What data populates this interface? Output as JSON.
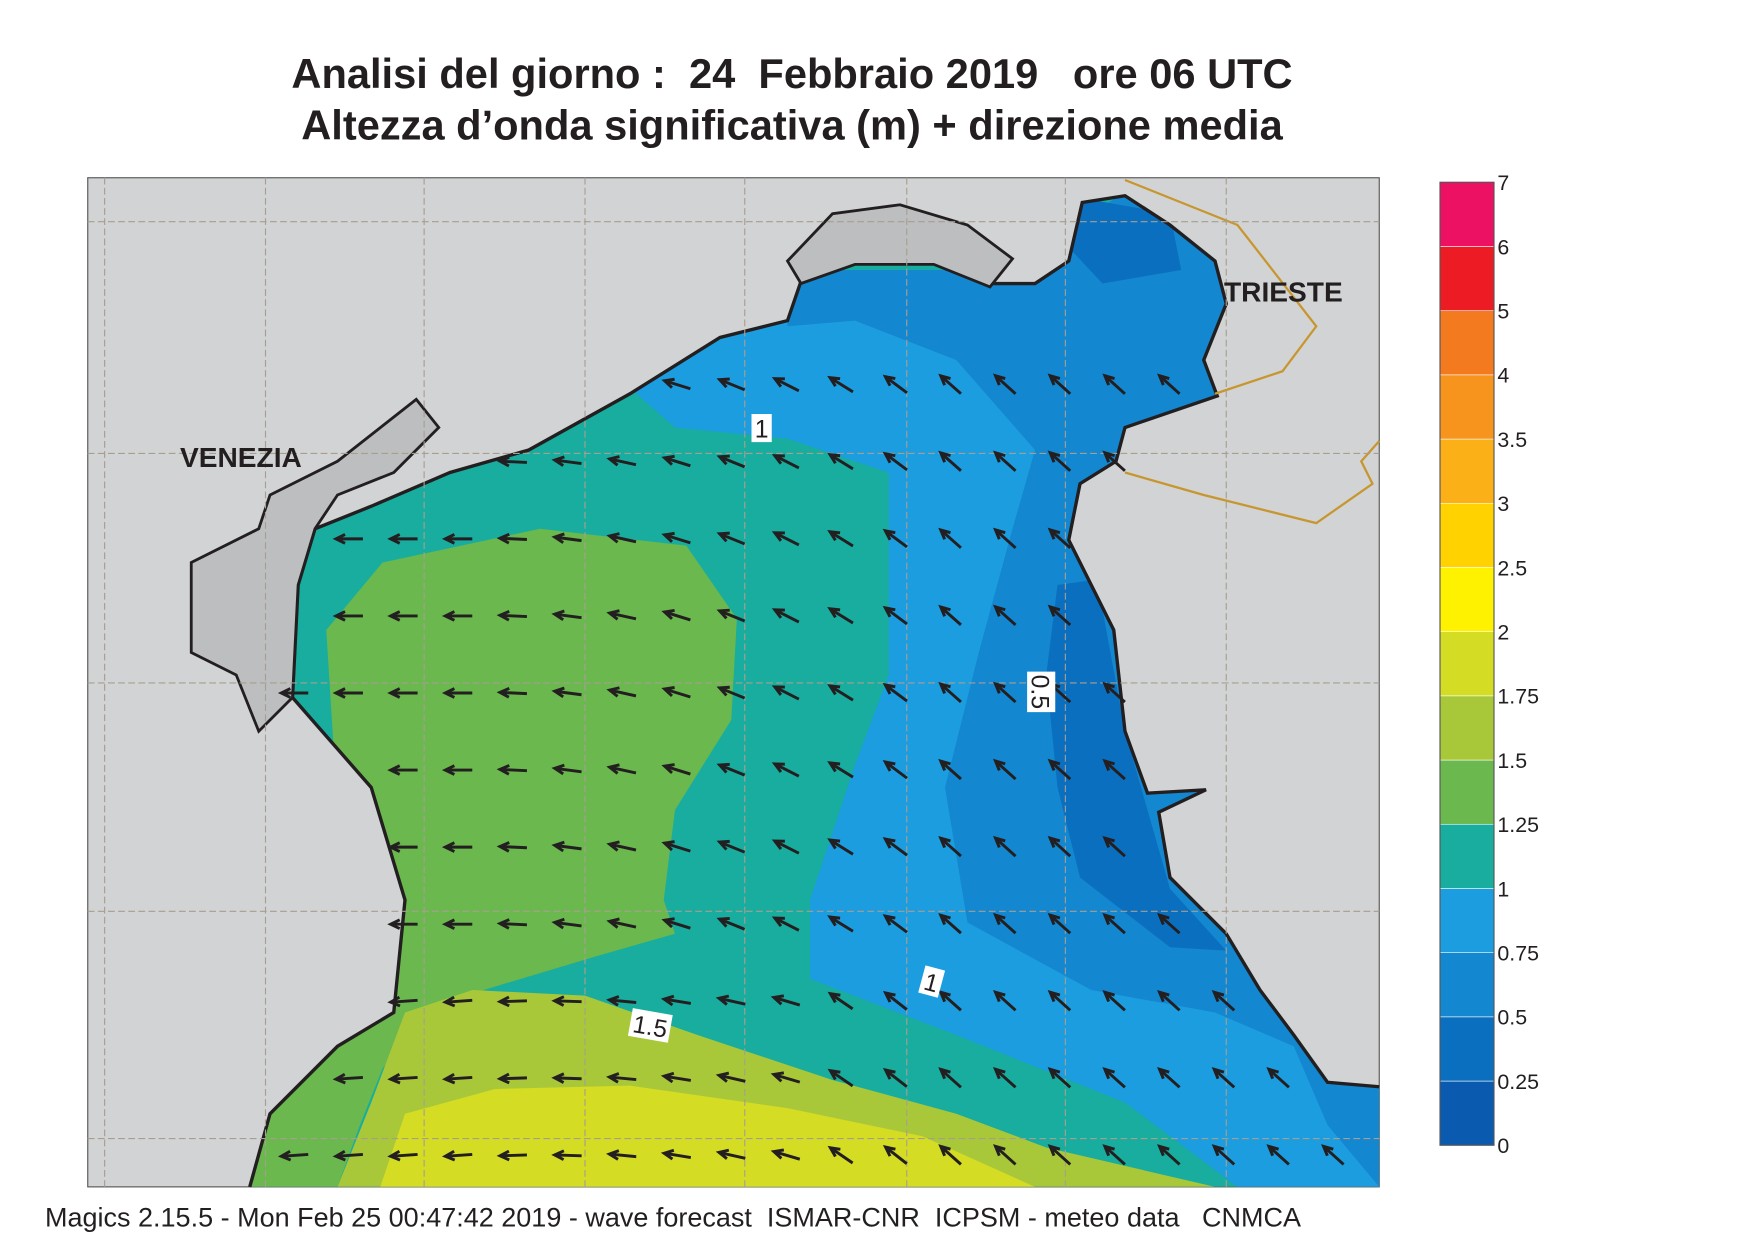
{
  "header": {
    "title": "Analisi del giorno :  24  Febbraio 2019   ore 06 UTC",
    "subtitle": "Altezza d’onda significativa (m) + direzione media"
  },
  "places": [
    "VENEZIA",
    "TRIESTE"
  ],
  "contour_labels": [
    "1",
    "1",
    "1.5",
    "0.5"
  ],
  "colorbar": {
    "labels": [
      "0",
      "0.25",
      "0.5",
      "0.75",
      "1",
      "1.25",
      "1.5",
      "1.75",
      "2",
      "2.5",
      "3",
      "3.5",
      "4",
      "5",
      "6",
      "7"
    ],
    "colors": [
      "#0a5bb0",
      "#0b6fc0",
      "#1387d0",
      "#1c9de0",
      "#18ad9e",
      "#6ab84e",
      "#a8c83a",
      "#d4dc24",
      "#fff200",
      "#ffd200",
      "#fbb017",
      "#f7941d",
      "#f47a20",
      "#ed1c24",
      "#ec1163"
    ]
  },
  "footer": "Magics 2.15.5 - Mon Feb 25 00:47:42 2019 - wave forecast  ISMAR-CNR  ICPSM - meteo data   CNMCA"
}
